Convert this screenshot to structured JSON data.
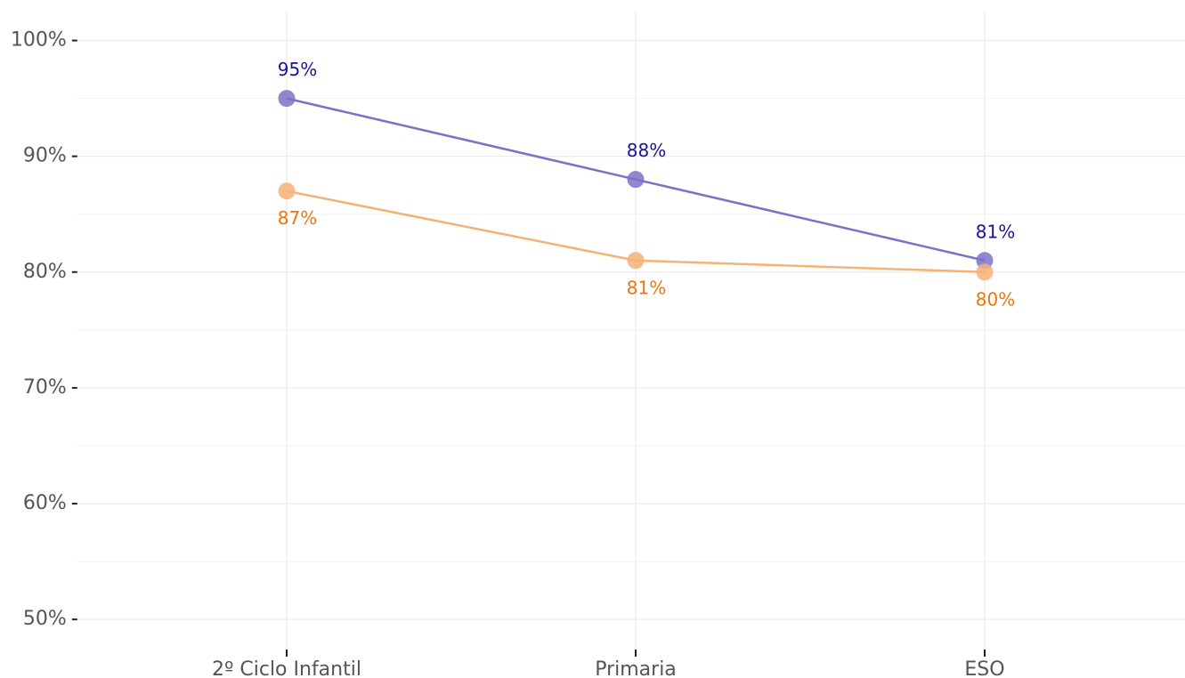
{
  "chart_data": {
    "type": "line",
    "categories": [
      "2º Ciclo Infantil",
      "Primaria",
      "ESO"
    ],
    "series": [
      {
        "color": "#7b72c8",
        "label_color": "#1a1496",
        "label_position": "above",
        "values": [
          95,
          88,
          81
        ],
        "value_labels": [
          "95%",
          "88%",
          "81%"
        ]
      },
      {
        "color": "#f5b275",
        "label_color": "#e8780c",
        "label_position": "below",
        "values": [
          87,
          81,
          80
        ],
        "value_labels": [
          "87%",
          "81%",
          "80%"
        ]
      }
    ],
    "ylim": [
      47.4,
      102.5
    ],
    "yticks": [
      {
        "value": 50,
        "label": "50%"
      },
      {
        "value": 60,
        "label": "60%"
      },
      {
        "value": 70,
        "label": "70%"
      },
      {
        "value": 80,
        "label": "80%"
      },
      {
        "value": 90,
        "label": "90%"
      },
      {
        "value": 100,
        "label": "100%"
      }
    ],
    "grid": true
  }
}
